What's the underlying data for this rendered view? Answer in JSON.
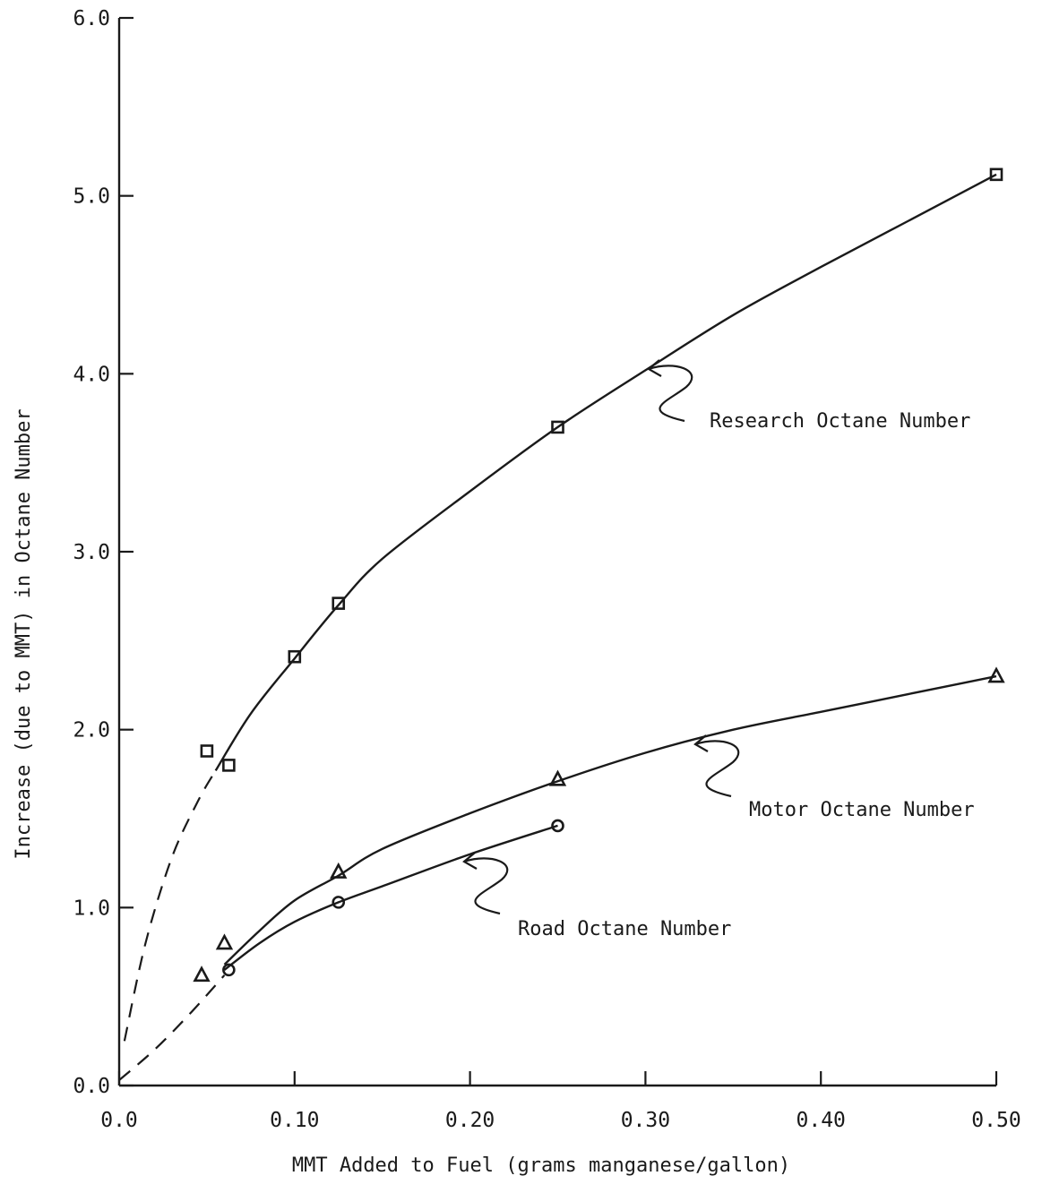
{
  "chart_data": {
    "type": "line",
    "xlabel": "MMT Added to Fuel (grams manganese/gallon)",
    "ylabel": "Increase (due to MMT) in Octane Number",
    "xlim": [
      0.0,
      0.5
    ],
    "ylim": [
      0.0,
      6.0
    ],
    "x_ticks": [
      "0.0",
      "0.10",
      "0.20",
      "0.30",
      "0.40",
      "0.50"
    ],
    "x_tick_values": [
      0.0,
      0.1,
      0.2,
      0.3,
      0.4,
      0.5
    ],
    "y_ticks": [
      "0.0",
      "1.0",
      "2.0",
      "3.0",
      "4.0",
      "5.0",
      "6.0"
    ],
    "y_tick_values": [
      0.0,
      1.0,
      2.0,
      3.0,
      4.0,
      5.0,
      6.0
    ],
    "grid": false,
    "legend": "none",
    "series": [
      {
        "name": "Research Octane Number",
        "marker": "square",
        "points": [
          [
            0.05,
            1.88
          ],
          [
            0.0625,
            1.8
          ],
          [
            0.1,
            2.41
          ],
          [
            0.125,
            2.71
          ],
          [
            0.25,
            3.7
          ],
          [
            0.5,
            5.12
          ]
        ],
        "curve": [
          [
            0.055,
            1.77
          ],
          [
            0.075,
            2.09
          ],
          [
            0.1,
            2.4
          ],
          [
            0.125,
            2.7
          ],
          [
            0.15,
            2.96
          ],
          [
            0.2,
            3.34
          ],
          [
            0.25,
            3.7
          ],
          [
            0.3,
            4.02
          ],
          [
            0.35,
            4.33
          ],
          [
            0.4,
            4.6
          ],
          [
            0.45,
            4.86
          ],
          [
            0.5,
            5.12
          ]
        ],
        "extrapolation": [
          [
            0.003,
            0.25
          ],
          [
            0.015,
            0.8
          ],
          [
            0.03,
            1.28
          ],
          [
            0.045,
            1.6
          ],
          [
            0.055,
            1.77
          ]
        ]
      },
      {
        "name": "Motor Octane Number",
        "marker": "triangle",
        "points": [
          [
            0.047,
            0.62
          ],
          [
            0.06,
            0.8
          ],
          [
            0.125,
            1.2
          ],
          [
            0.25,
            1.72
          ],
          [
            0.5,
            2.3
          ]
        ],
        "curve": [
          [
            0.06,
            0.68
          ],
          [
            0.08,
            0.87
          ],
          [
            0.1,
            1.04
          ],
          [
            0.125,
            1.18
          ],
          [
            0.15,
            1.33
          ],
          [
            0.2,
            1.53
          ],
          [
            0.25,
            1.71
          ],
          [
            0.3,
            1.87
          ],
          [
            0.35,
            2.0
          ],
          [
            0.4,
            2.1
          ],
          [
            0.45,
            2.2
          ],
          [
            0.5,
            2.3
          ]
        ]
      },
      {
        "name": "Road Octane Number",
        "marker": "circle",
        "points": [
          [
            0.0625,
            0.65
          ],
          [
            0.125,
            1.03
          ],
          [
            0.25,
            1.46
          ]
        ],
        "curve": [
          [
            0.06,
            0.65
          ],
          [
            0.08,
            0.8
          ],
          [
            0.1,
            0.92
          ],
          [
            0.125,
            1.03
          ],
          [
            0.15,
            1.12
          ],
          [
            0.2,
            1.3
          ],
          [
            0.25,
            1.46
          ]
        ],
        "extrapolation": [
          [
            0.0,
            0.03
          ],
          [
            0.02,
            0.2
          ],
          [
            0.04,
            0.4
          ],
          [
            0.06,
            0.62
          ]
        ]
      }
    ]
  }
}
